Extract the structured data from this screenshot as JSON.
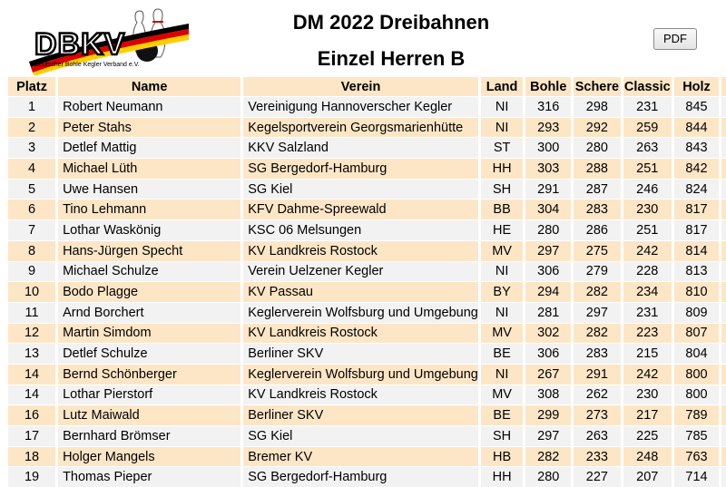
{
  "logo": {
    "text": "DBKV",
    "subtext": "Deutscher Bohle Kegler Verband e.V."
  },
  "title_line1": "DM 2022 Dreibahnen",
  "title_line2": "Einzel Herren B",
  "pdf_label": "PDF",
  "columns": [
    "Platz",
    "Name",
    "Verein",
    "Land",
    "Bohle",
    "Schere",
    "Classic",
    "Holz"
  ],
  "rows": [
    {
      "platz": "1",
      "name": "Robert Neumann",
      "verein": "Vereinigung Hannoverscher Kegler",
      "land": "NI",
      "bohle": "316",
      "schere": "298",
      "classic": "231",
      "holz": "845"
    },
    {
      "platz": "2",
      "name": "Peter Stahs",
      "verein": "Kegelsportverein Georgsmarienhütte",
      "land": "NI",
      "bohle": "293",
      "schere": "292",
      "classic": "259",
      "holz": "844"
    },
    {
      "platz": "3",
      "name": "Detlef Mattig",
      "verein": "KKV Salzland",
      "land": "ST",
      "bohle": "300",
      "schere": "280",
      "classic": "263",
      "holz": "843"
    },
    {
      "platz": "4",
      "name": "Michael Lüth",
      "verein": "SG Bergedorf-Hamburg",
      "land": "HH",
      "bohle": "303",
      "schere": "288",
      "classic": "251",
      "holz": "842"
    },
    {
      "platz": "5",
      "name": "Uwe Hansen",
      "verein": "SG Kiel",
      "land": "SH",
      "bohle": "291",
      "schere": "287",
      "classic": "246",
      "holz": "824"
    },
    {
      "platz": "6",
      "name": "Tino Lehmann",
      "verein": "KFV Dahme-Spreewald",
      "land": "BB",
      "bohle": "304",
      "schere": "283",
      "classic": "230",
      "holz": "817"
    },
    {
      "platz": "7",
      "name": "Lothar Waskönig",
      "verein": "KSC 06 Melsungen",
      "land": "HE",
      "bohle": "280",
      "schere": "286",
      "classic": "251",
      "holz": "817"
    },
    {
      "platz": "8",
      "name": "Hans-Jürgen Specht",
      "verein": "KV Landkreis Rostock",
      "land": "MV",
      "bohle": "297",
      "schere": "275",
      "classic": "242",
      "holz": "814"
    },
    {
      "platz": "9",
      "name": "Michael Schulze",
      "verein": "Verein Uelzener Kegler",
      "land": "NI",
      "bohle": "306",
      "schere": "279",
      "classic": "228",
      "holz": "813"
    },
    {
      "platz": "10",
      "name": "Bodo Plagge",
      "verein": "KV Passau",
      "land": "BY",
      "bohle": "294",
      "schere": "282",
      "classic": "234",
      "holz": "810"
    },
    {
      "platz": "11",
      "name": "Arnd Borchert",
      "verein": "Keglerverein Wolfsburg und Umgebung",
      "land": "NI",
      "bohle": "281",
      "schere": "297",
      "classic": "231",
      "holz": "809"
    },
    {
      "platz": "12",
      "name": "Martin Simdom",
      "verein": "KV Landkreis Rostock",
      "land": "MV",
      "bohle": "302",
      "schere": "282",
      "classic": "223",
      "holz": "807"
    },
    {
      "platz": "13",
      "name": "Detlef Schulze",
      "verein": "Berliner SKV",
      "land": "BE",
      "bohle": "306",
      "schere": "283",
      "classic": "215",
      "holz": "804"
    },
    {
      "platz": "14",
      "name": "Bernd Schönberger",
      "verein": "Keglerverein Wolfsburg und Umgebung",
      "land": "NI",
      "bohle": "267",
      "schere": "291",
      "classic": "242",
      "holz": "800"
    },
    {
      "platz": "14",
      "name": "Lothar Pierstorf",
      "verein": "KV Landkreis Rostock",
      "land": "MV",
      "bohle": "308",
      "schere": "262",
      "classic": "230",
      "holz": "800"
    },
    {
      "platz": "16",
      "name": "Lutz Maiwald",
      "verein": "Berliner SKV",
      "land": "BE",
      "bohle": "299",
      "schere": "273",
      "classic": "217",
      "holz": "789"
    },
    {
      "platz": "17",
      "name": "Bernhard Brömser",
      "verein": "SG Kiel",
      "land": "SH",
      "bohle": "297",
      "schere": "263",
      "classic": "225",
      "holz": "785"
    },
    {
      "platz": "18",
      "name": "Holger Mangels",
      "verein": "Bremer KV",
      "land": "HB",
      "bohle": "282",
      "schere": "233",
      "classic": "248",
      "holz": "763"
    },
    {
      "platz": "19",
      "name": "Thomas Pieper",
      "verein": "SG Bergedorf-Hamburg",
      "land": "HH",
      "bohle": "280",
      "schere": "227",
      "classic": "207",
      "holz": "714"
    }
  ],
  "colors": {
    "header_bg": "#fde6c6",
    "row_even": "#fde6c6",
    "row_odd": "#f2f2f2",
    "flag_black": "#000000",
    "flag_red": "#dd0000",
    "flag_gold": "#ffce00"
  }
}
